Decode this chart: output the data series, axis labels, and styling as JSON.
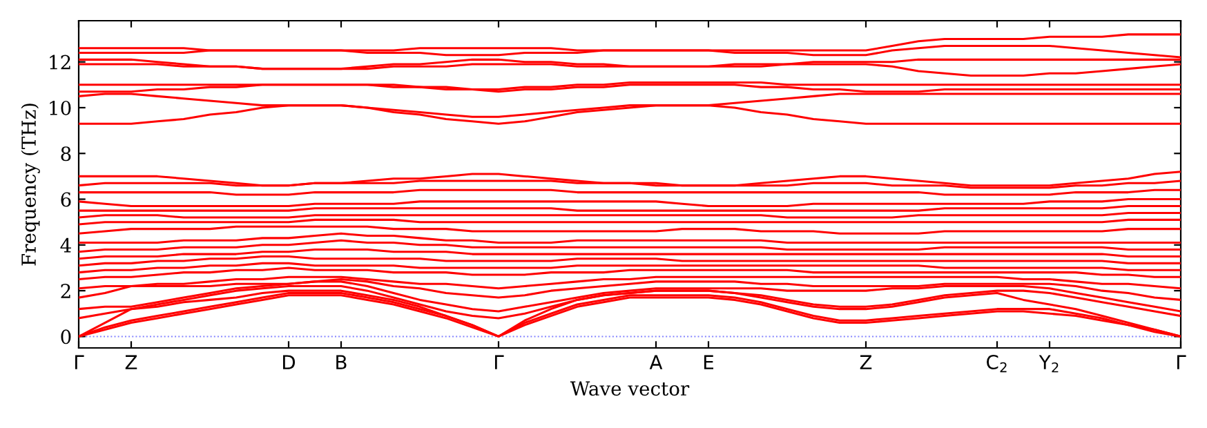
{
  "chart_data": {
    "type": "line",
    "xlabel": "Wave vector",
    "ylabel": "Frequency (THz)",
    "categories": [
      "Γ",
      null,
      "Z",
      null,
      null,
      null,
      null,
      null,
      "D",
      null,
      "B",
      null,
      null,
      null,
      null,
      null,
      "Γ",
      null,
      null,
      null,
      null,
      null,
      "A",
      null,
      "E",
      null,
      null,
      null,
      null,
      null,
      "Z",
      null,
      null,
      null,
      null,
      "C$_{2}$",
      null,
      "Y$_{2}$",
      null,
      null,
      null,
      null,
      "Γ"
    ],
    "ylim": [
      -0.5,
      13.8
    ],
    "yticks": [
      0,
      2,
      4,
      6,
      8,
      10,
      12
    ],
    "grid": false,
    "legend": false,
    "line_style": "solid",
    "ref_lines": [
      {
        "axis": "y",
        "value": 0,
        "label": null,
        "color": "#8080ff",
        "line_style": "dotted"
      }
    ],
    "series": [
      {
        "color": "#ff0000",
        "values": [
          0,
          0.3,
          0.6,
          0.8,
          1.0,
          1.2,
          1.4,
          1.6,
          1.8,
          1.8,
          1.8,
          1.6,
          1.4,
          1.1,
          0.8,
          0.4,
          0,
          0.5,
          0.9,
          1.3,
          1.5,
          1.7,
          1.7,
          1.7,
          1.7,
          1.6,
          1.4,
          1.1,
          0.8,
          0.6,
          0.6,
          0.7,
          0.8,
          0.9,
          1.0,
          1.1,
          1.1,
          1.0,
          0.9,
          0.7,
          0.5,
          0.2,
          0
        ]
      },
      {
        "color": "#ff0000",
        "values": [
          0,
          0.4,
          0.7,
          0.9,
          1.1,
          1.3,
          1.5,
          1.7,
          1.9,
          1.9,
          1.9,
          1.7,
          1.5,
          1.2,
          0.9,
          0.5,
          0,
          0.6,
          1.0,
          1.4,
          1.6,
          1.8,
          1.8,
          1.8,
          1.8,
          1.7,
          1.5,
          1.2,
          0.9,
          0.7,
          0.7,
          0.8,
          0.9,
          1.0,
          1.1,
          1.2,
          1.2,
          1.2,
          1.0,
          0.8,
          0.5,
          0.3,
          0
        ]
      },
      {
        "color": "#ff0000",
        "values": [
          0,
          0.6,
          1.2,
          1.3,
          1.5,
          1.6,
          1.7,
          1.9,
          2.0,
          2.0,
          2.0,
          1.8,
          1.6,
          1.3,
          0.9,
          0.5,
          0,
          0.7,
          1.2,
          1.6,
          1.8,
          1.9,
          2.0,
          2.0,
          2.0,
          1.9,
          1.7,
          1.5,
          1.3,
          1.2,
          1.2,
          1.3,
          1.5,
          1.7,
          1.8,
          1.9,
          1.6,
          1.4,
          1.2,
          0.9,
          0.6,
          0.3,
          0
        ]
      },
      {
        "color": "#ff0000",
        "values": [
          0.8,
          1.0,
          1.2,
          1.4,
          1.6,
          1.8,
          2.0,
          2.1,
          2.2,
          2.2,
          2.2,
          2.0,
          1.7,
          1.4,
          1.1,
          0.9,
          0.8,
          1.0,
          1.3,
          1.6,
          1.8,
          1.9,
          2.0,
          2.0,
          2.0,
          1.9,
          1.8,
          1.6,
          1.4,
          1.3,
          1.3,
          1.4,
          1.6,
          1.8,
          1.9,
          2.0,
          2.0,
          1.9,
          1.7,
          1.5,
          1.3,
          1.1,
          0.9
        ]
      },
      {
        "color": "#ff0000",
        "values": [
          1.2,
          1.3,
          1.3,
          1.5,
          1.7,
          1.9,
          2.1,
          2.2,
          2.3,
          2.4,
          2.4,
          2.2,
          1.9,
          1.6,
          1.4,
          1.2,
          1.1,
          1.3,
          1.5,
          1.7,
          1.9,
          2.0,
          2.1,
          2.1,
          2.1,
          2.1,
          2.1,
          2.0,
          2.0,
          2.0,
          2.0,
          2.1,
          2.1,
          2.2,
          2.2,
          2.2,
          2.2,
          2.1,
          1.9,
          1.7,
          1.5,
          1.3,
          1.1
        ]
      },
      {
        "color": "#ff0000",
        "values": [
          1.7,
          1.9,
          2.2,
          2.2,
          2.2,
          2.2,
          2.3,
          2.3,
          2.3,
          2.4,
          2.5,
          2.4,
          2.2,
          2.1,
          1.9,
          1.8,
          1.7,
          1.8,
          2.0,
          2.1,
          2.2,
          2.3,
          2.4,
          2.4,
          2.4,
          2.4,
          2.3,
          2.3,
          2.2,
          2.2,
          2.2,
          2.2,
          2.2,
          2.3,
          2.3,
          2.3,
          2.3,
          2.3,
          2.2,
          2.0,
          1.9,
          1.7,
          1.6
        ]
      },
      {
        "color": "#ff0000",
        "values": [
          2.1,
          2.2,
          2.2,
          2.3,
          2.3,
          2.4,
          2.5,
          2.5,
          2.6,
          2.6,
          2.6,
          2.5,
          2.4,
          2.3,
          2.3,
          2.2,
          2.1,
          2.2,
          2.3,
          2.4,
          2.5,
          2.5,
          2.6,
          2.6,
          2.6,
          2.6,
          2.6,
          2.6,
          2.6,
          2.6,
          2.6,
          2.6,
          2.6,
          2.6,
          2.6,
          2.6,
          2.5,
          2.5,
          2.4,
          2.3,
          2.3,
          2.2,
          2.1
        ]
      },
      {
        "color": "#ff0000",
        "values": [
          2.5,
          2.6,
          2.6,
          2.7,
          2.8,
          2.8,
          2.9,
          2.9,
          3.0,
          2.9,
          2.9,
          2.9,
          2.8,
          2.8,
          2.8,
          2.7,
          2.7,
          2.7,
          2.8,
          2.8,
          2.8,
          2.9,
          2.9,
          2.9,
          2.9,
          2.9,
          2.9,
          2.9,
          2.8,
          2.8,
          2.8,
          2.8,
          2.8,
          2.8,
          2.8,
          2.8,
          2.8,
          2.8,
          2.8,
          2.7,
          2.7,
          2.6,
          2.6
        ]
      },
      {
        "color": "#ff0000",
        "values": [
          2.8,
          2.9,
          2.9,
          3.0,
          3.0,
          3.1,
          3.1,
          3.2,
          3.2,
          3.1,
          3.1,
          3.1,
          3.1,
          3.0,
          3.0,
          3.0,
          3.0,
          3.0,
          3.0,
          3.1,
          3.1,
          3.1,
          3.1,
          3.1,
          3.1,
          3.1,
          3.1,
          3.1,
          3.1,
          3.1,
          3.1,
          3.1,
          3.1,
          3.0,
          3.0,
          3.0,
          3.0,
          3.0,
          3.0,
          3.0,
          2.9,
          2.9,
          2.9
        ]
      },
      {
        "color": "#ff0000",
        "values": [
          3.1,
          3.2,
          3.2,
          3.3,
          3.3,
          3.4,
          3.4,
          3.5,
          3.5,
          3.4,
          3.4,
          3.4,
          3.4,
          3.4,
          3.3,
          3.3,
          3.3,
          3.3,
          3.3,
          3.4,
          3.4,
          3.4,
          3.4,
          3.3,
          3.3,
          3.3,
          3.3,
          3.3,
          3.3,
          3.3,
          3.3,
          3.3,
          3.3,
          3.3,
          3.3,
          3.3,
          3.3,
          3.3,
          3.3,
          3.3,
          3.2,
          3.2,
          3.2
        ]
      },
      {
        "color": "#ff0000",
        "values": [
          3.4,
          3.5,
          3.5,
          3.5,
          3.6,
          3.6,
          3.6,
          3.7,
          3.7,
          3.8,
          3.8,
          3.8,
          3.7,
          3.7,
          3.7,
          3.6,
          3.6,
          3.6,
          3.6,
          3.6,
          3.6,
          3.6,
          3.6,
          3.6,
          3.6,
          3.6,
          3.6,
          3.6,
          3.6,
          3.6,
          3.6,
          3.6,
          3.6,
          3.6,
          3.6,
          3.6,
          3.6,
          3.6,
          3.6,
          3.6,
          3.5,
          3.5,
          3.5
        ]
      },
      {
        "color": "#ff0000",
        "values": [
          3.7,
          3.8,
          3.8,
          3.8,
          3.9,
          3.9,
          3.9,
          4.0,
          4.0,
          4.1,
          4.2,
          4.1,
          4.1,
          4.0,
          4.0,
          3.9,
          3.9,
          3.9,
          3.9,
          3.9,
          3.9,
          3.9,
          3.9,
          3.9,
          3.9,
          3.9,
          3.9,
          3.8,
          3.8,
          3.8,
          3.8,
          3.8,
          3.8,
          3.9,
          3.9,
          3.9,
          3.9,
          3.9,
          3.9,
          3.9,
          3.8,
          3.8,
          3.8
        ]
      },
      {
        "color": "#ff0000",
        "values": [
          4.1,
          4.1,
          4.1,
          4.1,
          4.2,
          4.2,
          4.2,
          4.3,
          4.3,
          4.4,
          4.5,
          4.4,
          4.4,
          4.3,
          4.2,
          4.2,
          4.1,
          4.1,
          4.1,
          4.2,
          4.2,
          4.2,
          4.2,
          4.2,
          4.2,
          4.2,
          4.2,
          4.1,
          4.1,
          4.1,
          4.1,
          4.1,
          4.1,
          4.1,
          4.1,
          4.1,
          4.1,
          4.1,
          4.1,
          4.1,
          4.1,
          4.1,
          4.1
        ]
      },
      {
        "color": "#ff0000",
        "values": [
          4.5,
          4.6,
          4.7,
          4.7,
          4.7,
          4.7,
          4.8,
          4.8,
          4.8,
          4.8,
          4.8,
          4.8,
          4.7,
          4.7,
          4.7,
          4.6,
          4.6,
          4.6,
          4.6,
          4.6,
          4.6,
          4.6,
          4.6,
          4.7,
          4.7,
          4.7,
          4.6,
          4.6,
          4.6,
          4.5,
          4.5,
          4.5,
          4.5,
          4.6,
          4.6,
          4.6,
          4.6,
          4.6,
          4.6,
          4.6,
          4.7,
          4.7,
          4.7
        ]
      },
      {
        "color": "#ff0000",
        "values": [
          4.9,
          5.0,
          5.0,
          5.0,
          5.0,
          5.0,
          5.0,
          5.0,
          5.0,
          5.1,
          5.1,
          5.1,
          5.1,
          5.0,
          5.0,
          5.0,
          5.0,
          5.0,
          5.0,
          5.0,
          5.0,
          5.0,
          5.0,
          5.0,
          5.0,
          5.0,
          5.0,
          5.0,
          5.0,
          5.0,
          5.0,
          5.0,
          5.0,
          5.0,
          5.0,
          5.0,
          5.0,
          5.0,
          5.0,
          5.0,
          5.1,
          5.1,
          5.1
        ]
      },
      {
        "color": "#ff0000",
        "values": [
          5.2,
          5.3,
          5.3,
          5.3,
          5.2,
          5.2,
          5.2,
          5.2,
          5.2,
          5.3,
          5.3,
          5.3,
          5.3,
          5.3,
          5.3,
          5.3,
          5.3,
          5.3,
          5.3,
          5.3,
          5.3,
          5.3,
          5.3,
          5.3,
          5.3,
          5.3,
          5.3,
          5.2,
          5.2,
          5.2,
          5.2,
          5.2,
          5.3,
          5.3,
          5.3,
          5.3,
          5.3,
          5.3,
          5.3,
          5.3,
          5.4,
          5.4,
          5.4
        ]
      },
      {
        "color": "#ff0000",
        "values": [
          5.5,
          5.5,
          5.5,
          5.5,
          5.5,
          5.5,
          5.5,
          5.5,
          5.5,
          5.6,
          5.6,
          5.6,
          5.6,
          5.6,
          5.6,
          5.6,
          5.6,
          5.6,
          5.6,
          5.5,
          5.5,
          5.5,
          5.5,
          5.5,
          5.5,
          5.5,
          5.5,
          5.5,
          5.5,
          5.5,
          5.5,
          5.5,
          5.5,
          5.6,
          5.6,
          5.6,
          5.6,
          5.6,
          5.6,
          5.6,
          5.7,
          5.7,
          5.7
        ]
      },
      {
        "color": "#ff0000",
        "values": [
          5.9,
          5.8,
          5.7,
          5.7,
          5.7,
          5.7,
          5.7,
          5.7,
          5.7,
          5.8,
          5.8,
          5.8,
          5.8,
          5.9,
          5.9,
          5.9,
          5.9,
          5.9,
          5.9,
          5.9,
          5.9,
          5.9,
          5.9,
          5.8,
          5.7,
          5.7,
          5.7,
          5.7,
          5.8,
          5.8,
          5.8,
          5.8,
          5.8,
          5.8,
          5.8,
          5.8,
          5.8,
          5.9,
          5.9,
          5.9,
          6.0,
          6.0,
          6.0
        ]
      },
      {
        "color": "#ff0000",
        "values": [
          6.3,
          6.3,
          6.3,
          6.3,
          6.3,
          6.3,
          6.2,
          6.2,
          6.2,
          6.3,
          6.3,
          6.3,
          6.3,
          6.4,
          6.4,
          6.4,
          6.4,
          6.4,
          6.4,
          6.3,
          6.3,
          6.3,
          6.3,
          6.3,
          6.3,
          6.3,
          6.3,
          6.3,
          6.3,
          6.3,
          6.3,
          6.3,
          6.3,
          6.2,
          6.2,
          6.2,
          6.2,
          6.2,
          6.3,
          6.3,
          6.3,
          6.4,
          6.4
        ]
      },
      {
        "color": "#ff0000",
        "values": [
          6.6,
          6.7,
          6.7,
          6.7,
          6.7,
          6.7,
          6.6,
          6.6,
          6.6,
          6.7,
          6.7,
          6.7,
          6.7,
          6.8,
          6.8,
          6.8,
          6.8,
          6.8,
          6.8,
          6.7,
          6.7,
          6.7,
          6.7,
          6.6,
          6.6,
          6.6,
          6.6,
          6.6,
          6.7,
          6.7,
          6.7,
          6.6,
          6.6,
          6.6,
          6.5,
          6.5,
          6.5,
          6.5,
          6.6,
          6.6,
          6.7,
          6.7,
          6.8
        ]
      },
      {
        "color": "#ff0000",
        "values": [
          7.0,
          7.0,
          7.0,
          7.0,
          6.9,
          6.8,
          6.7,
          6.6,
          6.6,
          6.7,
          6.7,
          6.8,
          6.9,
          6.9,
          7.0,
          7.1,
          7.1,
          7.0,
          6.9,
          6.8,
          6.7,
          6.7,
          6.6,
          6.6,
          6.6,
          6.6,
          6.7,
          6.8,
          6.9,
          7.0,
          7.0,
          6.9,
          6.8,
          6.7,
          6.6,
          6.6,
          6.6,
          6.6,
          6.7,
          6.8,
          6.9,
          7.1,
          7.2
        ]
      },
      {
        "color": "#ff0000",
        "values": [
          9.3,
          9.3,
          9.3,
          9.4,
          9.5,
          9.7,
          9.8,
          10.0,
          10.1,
          10.1,
          10.1,
          10.0,
          9.8,
          9.7,
          9.5,
          9.4,
          9.3,
          9.4,
          9.6,
          9.8,
          9.9,
          10.0,
          10.1,
          10.1,
          10.1,
          10.0,
          9.8,
          9.7,
          9.5,
          9.4,
          9.3,
          9.3,
          9.3,
          9.3,
          9.3,
          9.3,
          9.3,
          9.3,
          9.3,
          9.3,
          9.3,
          9.3,
          9.3
        ]
      },
      {
        "color": "#ff0000",
        "values": [
          10.5,
          10.6,
          10.6,
          10.5,
          10.4,
          10.3,
          10.2,
          10.1,
          10.1,
          10.1,
          10.1,
          10.0,
          9.9,
          9.8,
          9.7,
          9.6,
          9.6,
          9.7,
          9.8,
          9.9,
          10.0,
          10.1,
          10.1,
          10.1,
          10.1,
          10.2,
          10.3,
          10.4,
          10.5,
          10.6,
          10.6,
          10.6,
          10.6,
          10.6,
          10.6,
          10.6,
          10.6,
          10.6,
          10.6,
          10.6,
          10.6,
          10.6,
          10.6
        ]
      },
      {
        "color": "#ff0000",
        "values": [
          10.7,
          10.7,
          10.7,
          10.8,
          10.8,
          10.9,
          10.9,
          11.0,
          11.0,
          11.0,
          11.0,
          11.0,
          10.9,
          10.9,
          10.8,
          10.8,
          10.7,
          10.8,
          10.8,
          10.9,
          10.9,
          11.0,
          11.0,
          11.0,
          11.0,
          11.0,
          10.9,
          10.9,
          10.8,
          10.8,
          10.7,
          10.7,
          10.7,
          10.8,
          10.8,
          10.8,
          10.8,
          10.8,
          10.8,
          10.8,
          10.8,
          10.8,
          10.8
        ]
      },
      {
        "color": "#ff0000",
        "values": [
          11.0,
          11.0,
          11.0,
          11.0,
          11.0,
          11.0,
          11.0,
          11.0,
          11.0,
          11.0,
          11.0,
          11.0,
          11.0,
          10.9,
          10.9,
          10.8,
          10.8,
          10.9,
          10.9,
          11.0,
          11.0,
          11.1,
          11.1,
          11.1,
          11.1,
          11.1,
          11.1,
          11.0,
          11.0,
          11.0,
          11.0,
          11.0,
          11.0,
          11.0,
          11.0,
          11.0,
          11.0,
          11.0,
          11.0,
          11.0,
          11.0,
          11.0,
          11.0
        ]
      },
      {
        "color": "#ff0000",
        "values": [
          11.9,
          11.9,
          11.9,
          11.9,
          11.8,
          11.8,
          11.8,
          11.7,
          11.7,
          11.7,
          11.7,
          11.7,
          11.8,
          11.8,
          11.8,
          11.9,
          11.9,
          11.9,
          11.9,
          11.8,
          11.8,
          11.8,
          11.8,
          11.8,
          11.8,
          11.8,
          11.8,
          11.9,
          11.9,
          11.9,
          11.9,
          11.8,
          11.6,
          11.5,
          11.4,
          11.4,
          11.4,
          11.5,
          11.5,
          11.6,
          11.7,
          11.8,
          11.9
        ]
      },
      {
        "color": "#ff0000",
        "values": [
          12.1,
          12.1,
          12.1,
          12.0,
          11.9,
          11.8,
          11.8,
          11.7,
          11.7,
          11.7,
          11.7,
          11.8,
          11.9,
          11.9,
          12.0,
          12.1,
          12.1,
          12.0,
          12.0,
          11.9,
          11.9,
          11.8,
          11.8,
          11.8,
          11.8,
          11.9,
          11.9,
          11.9,
          12.0,
          12.0,
          12.0,
          12.0,
          12.1,
          12.1,
          12.1,
          12.1,
          12.1,
          12.1,
          12.1,
          12.1,
          12.1,
          12.1,
          12.1
        ]
      },
      {
        "color": "#ff0000",
        "values": [
          12.4,
          12.4,
          12.4,
          12.4,
          12.4,
          12.5,
          12.5,
          12.5,
          12.5,
          12.5,
          12.5,
          12.4,
          12.4,
          12.4,
          12.3,
          12.3,
          12.3,
          12.4,
          12.4,
          12.4,
          12.5,
          12.5,
          12.5,
          12.5,
          12.5,
          12.4,
          12.4,
          12.4,
          12.3,
          12.3,
          12.3,
          12.5,
          12.6,
          12.7,
          12.7,
          12.7,
          12.7,
          12.7,
          12.6,
          12.5,
          12.4,
          12.3,
          12.2
        ]
      },
      {
        "color": "#ff0000",
        "values": [
          12.6,
          12.6,
          12.6,
          12.6,
          12.6,
          12.5,
          12.5,
          12.5,
          12.5,
          12.5,
          12.5,
          12.5,
          12.5,
          12.6,
          12.6,
          12.6,
          12.6,
          12.6,
          12.6,
          12.5,
          12.5,
          12.5,
          12.5,
          12.5,
          12.5,
          12.5,
          12.5,
          12.5,
          12.5,
          12.5,
          12.5,
          12.7,
          12.9,
          13.0,
          13.0,
          13.0,
          13.0,
          13.1,
          13.1,
          13.1,
          13.2,
          13.2,
          13.2
        ]
      }
    ]
  }
}
